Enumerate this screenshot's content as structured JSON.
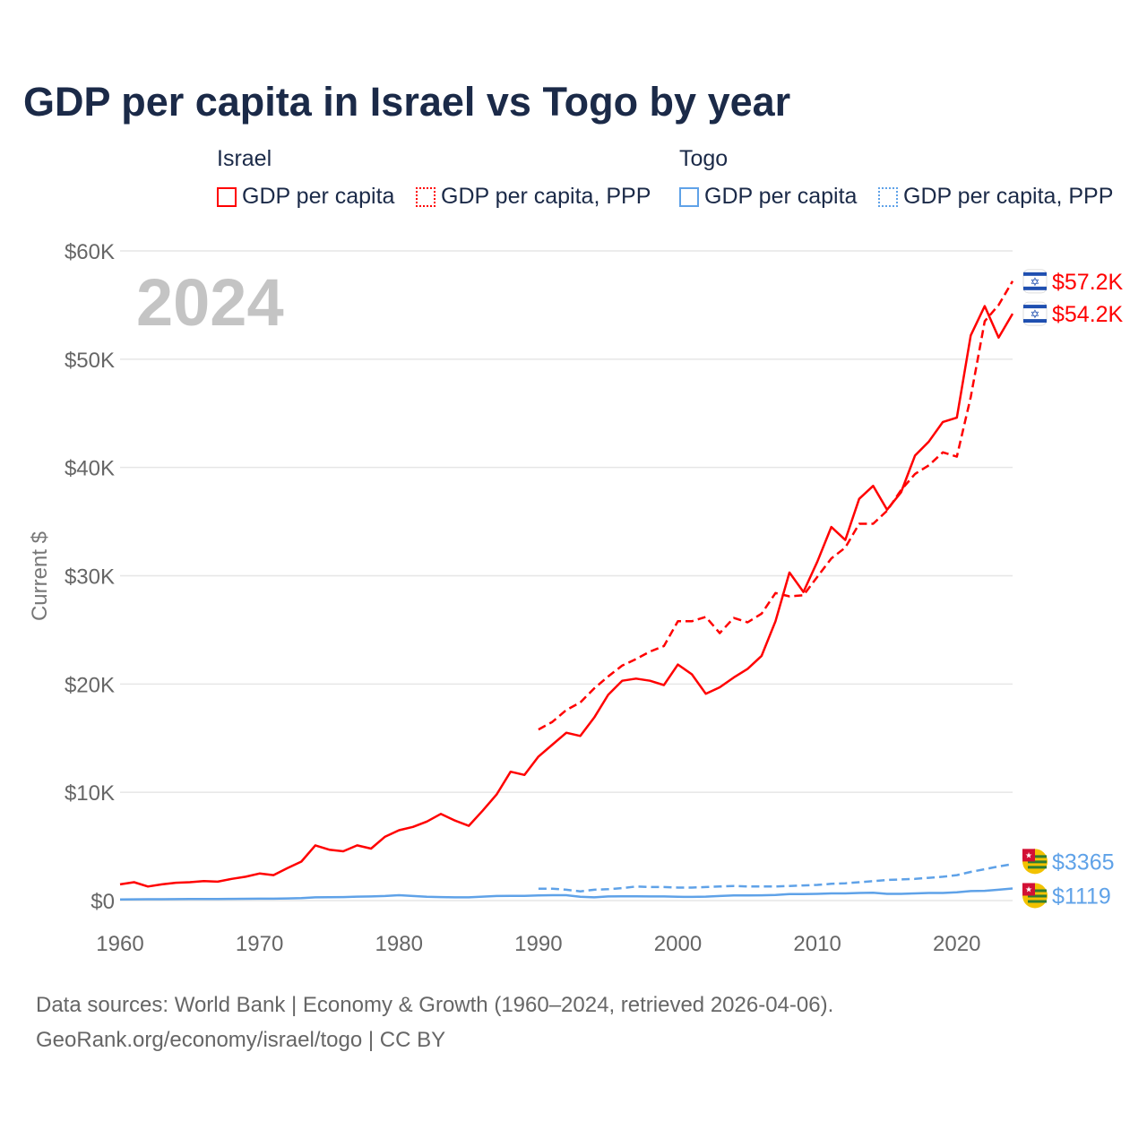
{
  "title": "GDP per capita in Israel vs Togo by year",
  "legend": {
    "groups": [
      {
        "name": "Israel",
        "color": "#ff0000",
        "items": [
          "GDP per capita",
          "GDP per capita, PPP"
        ]
      },
      {
        "name": "Togo",
        "color": "#5fa2e8",
        "items": [
          "GDP per capita",
          "GDP per capita, PPP"
        ]
      }
    ]
  },
  "current_year": "2024",
  "source_line1": "Data sources: World Bank | Economy & Growth (1960–2024, retrieved 2026-04-06).",
  "source_line2": "GeoRank.org/economy/israel/togo | CC BY",
  "chart_data": {
    "type": "line",
    "title": "GDP per capita in Israel vs Togo by year",
    "xlabel": "",
    "ylabel": "Current $",
    "xlim": [
      1960,
      2024
    ],
    "ylim": [
      0,
      60000
    ],
    "xticks": [
      1960,
      1970,
      1980,
      1990,
      2000,
      2010,
      2020
    ],
    "xtick_labels": [
      "1960",
      "1970",
      "1980",
      "1990",
      "2000",
      "2010",
      "2020"
    ],
    "yticks": [
      0,
      10000,
      20000,
      30000,
      40000,
      50000,
      60000
    ],
    "ytick_labels": [
      "$0",
      "$10K",
      "$20K",
      "$30K",
      "$40K",
      "$50K",
      "$60K"
    ],
    "grid": true,
    "legend_placement": "top",
    "series": [
      {
        "name": "Israel GDP per capita",
        "color": "#ff0000",
        "dash": false,
        "start": 1960,
        "end_label": "$54.2K",
        "values": [
          1500,
          1700,
          1300,
          1500,
          1650,
          1700,
          1800,
          1750,
          2000,
          2200,
          2500,
          2350,
          3000,
          3600,
          5100,
          4700,
          4550,
          5100,
          4800,
          5900,
          6500,
          6800,
          7300,
          8000,
          7400,
          6900,
          8300,
          9800,
          11900,
          11600,
          13300,
          14400,
          15500,
          15200,
          16900,
          19000,
          20300,
          20500,
          20300,
          19900,
          21800,
          20900,
          19100,
          19700,
          20600,
          21400,
          22600,
          25800,
          30300,
          28500,
          31300,
          34500,
          33300,
          37100,
          38300,
          36100,
          37700,
          41100,
          42400,
          44200,
          44600,
          52200,
          54900,
          52000,
          54200
        ]
      },
      {
        "name": "Israel GDP per capita, PPP",
        "color": "#ff0000",
        "dash": true,
        "start": 1990,
        "end_label": "$57.2K",
        "values": [
          15800,
          16500,
          17600,
          18300,
          19600,
          20700,
          21700,
          22300,
          23000,
          23500,
          25800,
          25800,
          26200,
          24700,
          26100,
          25700,
          26500,
          28400,
          28100,
          28200,
          29900,
          31600,
          32600,
          34800,
          34800,
          36000,
          37900,
          39400,
          40200,
          41400,
          41000,
          46500,
          53500,
          55000,
          57200
        ]
      },
      {
        "name": "Togo GDP per capita",
        "color": "#5fa2e8",
        "dash": false,
        "start": 1960,
        "end_label": "$1119",
        "values": [
          110,
          115,
          120,
          125,
          130,
          140,
          145,
          150,
          160,
          165,
          170,
          175,
          200,
          230,
          300,
          310,
          320,
          360,
          380,
          420,
          500,
          420,
          350,
          320,
          300,
          300,
          360,
          420,
          440,
          430,
          480,
          500,
          500,
          350,
          300,
          380,
          400,
          400,
          380,
          380,
          350,
          340,
          360,
          420,
          470,
          480,
          490,
          520,
          600,
          600,
          620,
          660,
          660,
          700,
          720,
          620,
          620,
          660,
          700,
          700,
          760,
          880,
          900,
          1000,
          1119
        ]
      },
      {
        "name": "Togo GDP per capita, PPP",
        "color": "#5fa2e8",
        "dash": true,
        "start": 1990,
        "end_label": "$3365",
        "values": [
          1100,
          1100,
          1000,
          850,
          1000,
          1050,
          1150,
          1300,
          1250,
          1250,
          1200,
          1200,
          1250,
          1300,
          1350,
          1300,
          1300,
          1300,
          1350,
          1400,
          1450,
          1550,
          1600,
          1700,
          1800,
          1900,
          1950,
          2000,
          2100,
          2200,
          2350,
          2650,
          2900,
          3150,
          3365
        ]
      }
    ]
  }
}
